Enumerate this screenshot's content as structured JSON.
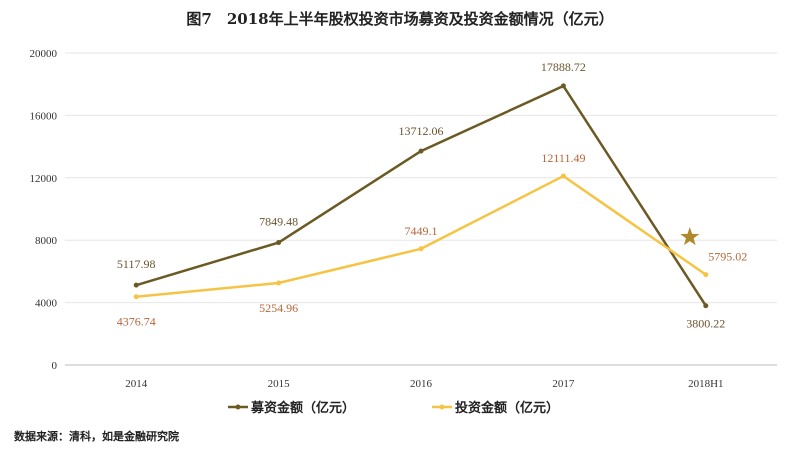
{
  "title": "图7　2018年上半年股权投资市场募资及投资金额情况（亿元）",
  "source": "数据来源：清科，如是金融研究院",
  "chart_data": {
    "type": "line",
    "categories": [
      "2014",
      "2015",
      "2016",
      "2017",
      "2018H1"
    ],
    "ylim": [
      0,
      20000
    ],
    "yticks": [
      0,
      4000,
      8000,
      12000,
      16000,
      20000
    ],
    "grid": true,
    "legend_position": "bottom",
    "series": [
      {
        "name": "募资金额（亿元）",
        "color": "#6b5a24",
        "label_color": "#6b5430",
        "values": [
          5117.98,
          7849.48,
          13712.06,
          17888.72,
          3800.22
        ]
      },
      {
        "name": "投资金额（亿元）",
        "color": "#f6c445",
        "label_color": "#b8663a",
        "values": [
          4376.74,
          5254.96,
          7449.1,
          12111.49,
          5795.02
        ]
      }
    ],
    "annotations": [
      {
        "type": "star",
        "near": "2018H1",
        "color": "#b08a2a"
      }
    ]
  }
}
